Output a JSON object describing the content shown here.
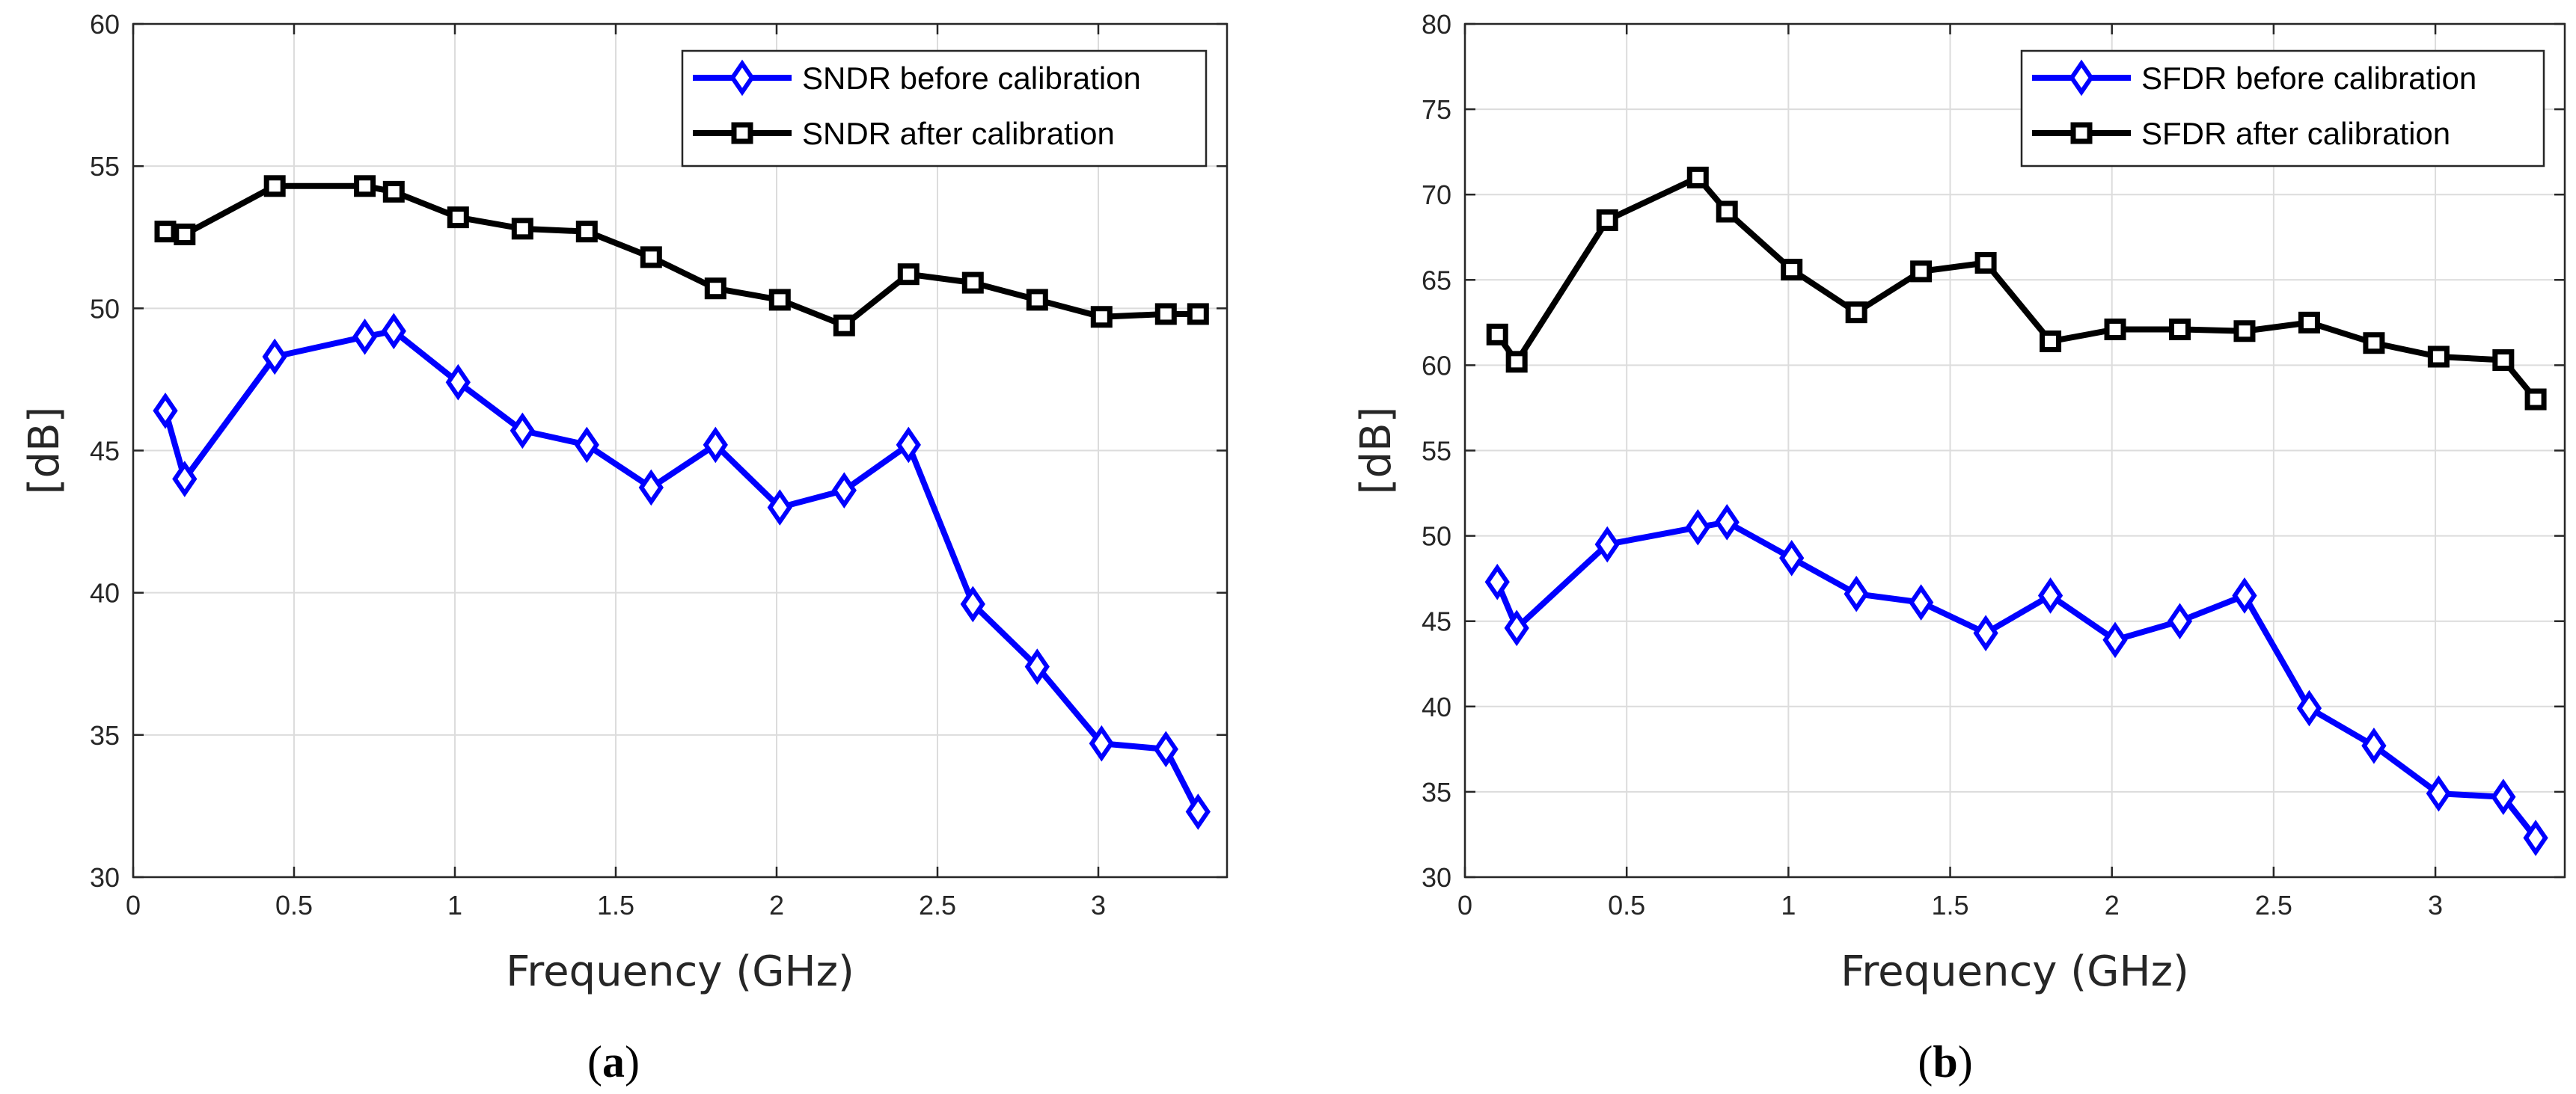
{
  "chart_data": [
    {
      "type": "line",
      "panel_label": "(a)",
      "caption_letter": "a",
      "xlabel": "Frequency (GHz)",
      "ylabel": "[dB]",
      "xlim": [
        0,
        3.4
      ],
      "ylim": [
        30,
        60
      ],
      "xticks": [
        0,
        0.5,
        1,
        1.5,
        2,
        2.5,
        3
      ],
      "xtick_labels": [
        "0",
        "0.5",
        "1",
        "1.5",
        "2",
        "2.5",
        "3"
      ],
      "yticks": [
        30,
        35,
        40,
        45,
        50,
        55,
        60
      ],
      "ytick_labels": [
        "30",
        "35",
        "40",
        "45",
        "50",
        "55",
        "60"
      ],
      "grid": true,
      "legend_position": "top-right",
      "x": [
        0.1,
        0.16,
        0.44,
        0.72,
        0.81,
        1.01,
        1.21,
        1.41,
        1.61,
        1.81,
        2.01,
        2.21,
        2.41,
        2.61,
        2.81,
        3.01,
        3.21,
        3.31
      ],
      "series": [
        {
          "name": "SNDR before calibration",
          "color": "#0000ff",
          "marker": "diamond",
          "values": [
            46.4,
            44.0,
            48.3,
            49.0,
            49.2,
            47.4,
            45.7,
            45.2,
            43.7,
            45.2,
            43.0,
            43.6,
            45.2,
            39.6,
            37.4,
            34.7,
            34.5,
            32.3
          ]
        },
        {
          "name": "SNDR after calibration",
          "color": "#000000",
          "marker": "square",
          "values": [
            52.7,
            52.6,
            54.3,
            54.3,
            54.1,
            53.2,
            52.8,
            52.7,
            51.8,
            50.7,
            50.3,
            49.4,
            51.2,
            50.9,
            50.3,
            49.7,
            49.8,
            49.8
          ]
        }
      ]
    },
    {
      "type": "line",
      "panel_label": "(b)",
      "caption_letter": "b",
      "xlabel": "Frequency (GHz)",
      "ylabel": "[dB]",
      "xlim": [
        0,
        3.4
      ],
      "ylim": [
        30,
        80
      ],
      "xticks": [
        0,
        0.5,
        1,
        1.5,
        2,
        2.5,
        3
      ],
      "xtick_labels": [
        "0",
        "0.5",
        "1",
        "1.5",
        "2",
        "2.5",
        "3"
      ],
      "yticks": [
        30,
        35,
        40,
        45,
        50,
        55,
        60,
        65,
        70,
        75,
        80
      ],
      "ytick_labels": [
        "30",
        "35",
        "40",
        "45",
        "50",
        "55",
        "60",
        "65",
        "70",
        "75",
        "80"
      ],
      "grid": true,
      "legend_position": "top-right",
      "x": [
        0.1,
        0.16,
        0.44,
        0.72,
        0.81,
        1.01,
        1.21,
        1.41,
        1.61,
        1.81,
        2.01,
        2.21,
        2.41,
        2.61,
        2.81,
        3.01,
        3.21,
        3.31
      ],
      "series": [
        {
          "name": "SFDR before calibration",
          "color": "#0000ff",
          "marker": "diamond",
          "values": [
            47.3,
            44.6,
            49.5,
            50.5,
            50.8,
            48.7,
            46.6,
            46.1,
            44.3,
            46.5,
            43.9,
            45.0,
            46.5,
            39.9,
            37.7,
            34.9,
            34.7,
            32.3
          ]
        },
        {
          "name": "SFDR after calibration",
          "color": "#000000",
          "marker": "square",
          "values": [
            61.8,
            60.2,
            68.5,
            71.0,
            69.0,
            65.6,
            63.1,
            65.5,
            66.0,
            61.4,
            62.1,
            62.1,
            62.0,
            62.5,
            61.3,
            60.5,
            60.3,
            58.0
          ]
        }
      ]
    }
  ]
}
